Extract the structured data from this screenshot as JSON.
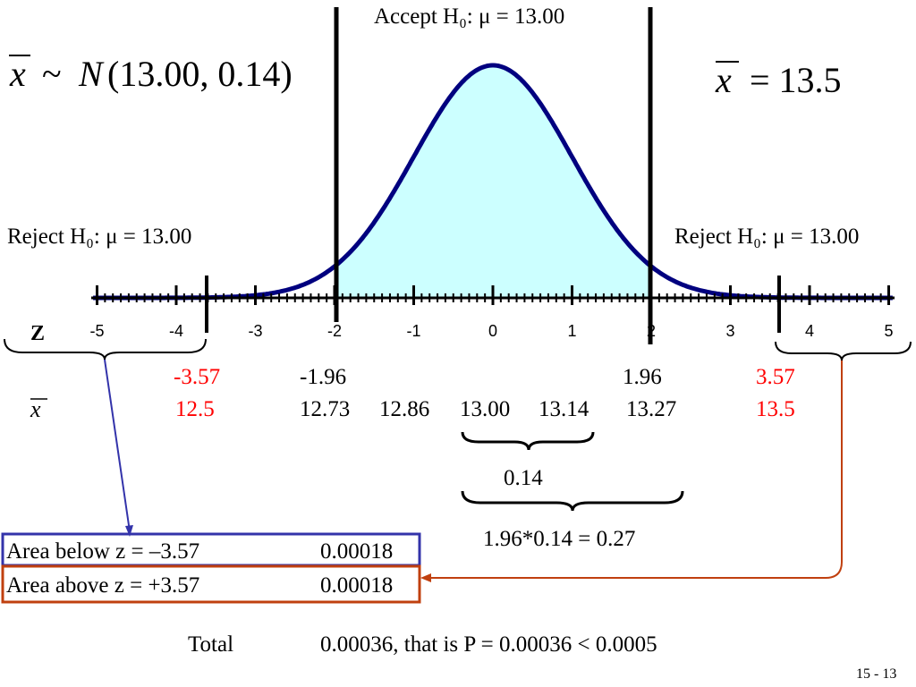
{
  "formula_left": {
    "prefix": "~",
    "n": "N",
    "params": "(13.00, 0.14)"
  },
  "formula_right": {
    "rhs": "= 13.5"
  },
  "labels": {
    "accept": "Accept H₀: μ = 13.00",
    "reject_left": "Reject H₀: μ = 13.00",
    "reject_right": "Reject H₀: μ = 13.00",
    "z_label": "Z",
    "xbar_symbol": "x"
  },
  "z_ticks": [
    "-5",
    "-4",
    "-3",
    "-2",
    "-1",
    "0",
    "1",
    "2",
    "3",
    "4",
    "5"
  ],
  "critical_values": {
    "z_left_red": "-3.57",
    "z_left": "-1.96",
    "z_right": "1.96",
    "z_right_red": "3.57",
    "x_left_red": "12.5",
    "x_values": [
      "12.73",
      "12.86",
      "13.00",
      "13.14",
      "13.27"
    ],
    "x_right_red": "13.5"
  },
  "braces": {
    "se_label": "0.14",
    "margin_label": "1.96*0.14 = 0.27"
  },
  "areas": {
    "below_label": "Area below z = –3.57",
    "below_value": "0.00018",
    "above_label": "Area above z = +3.57",
    "above_value": "0.00018"
  },
  "total": {
    "label": "Total",
    "value": "0.00036, that is P = 0.00036 < 0.0005"
  },
  "page_number": "15 -  13",
  "colors": {
    "curve": "#00007f",
    "fill": "#ccffff",
    "red": "#ff0000",
    "blue_box": "#3333aa",
    "orange_box": "#c0400f"
  }
}
